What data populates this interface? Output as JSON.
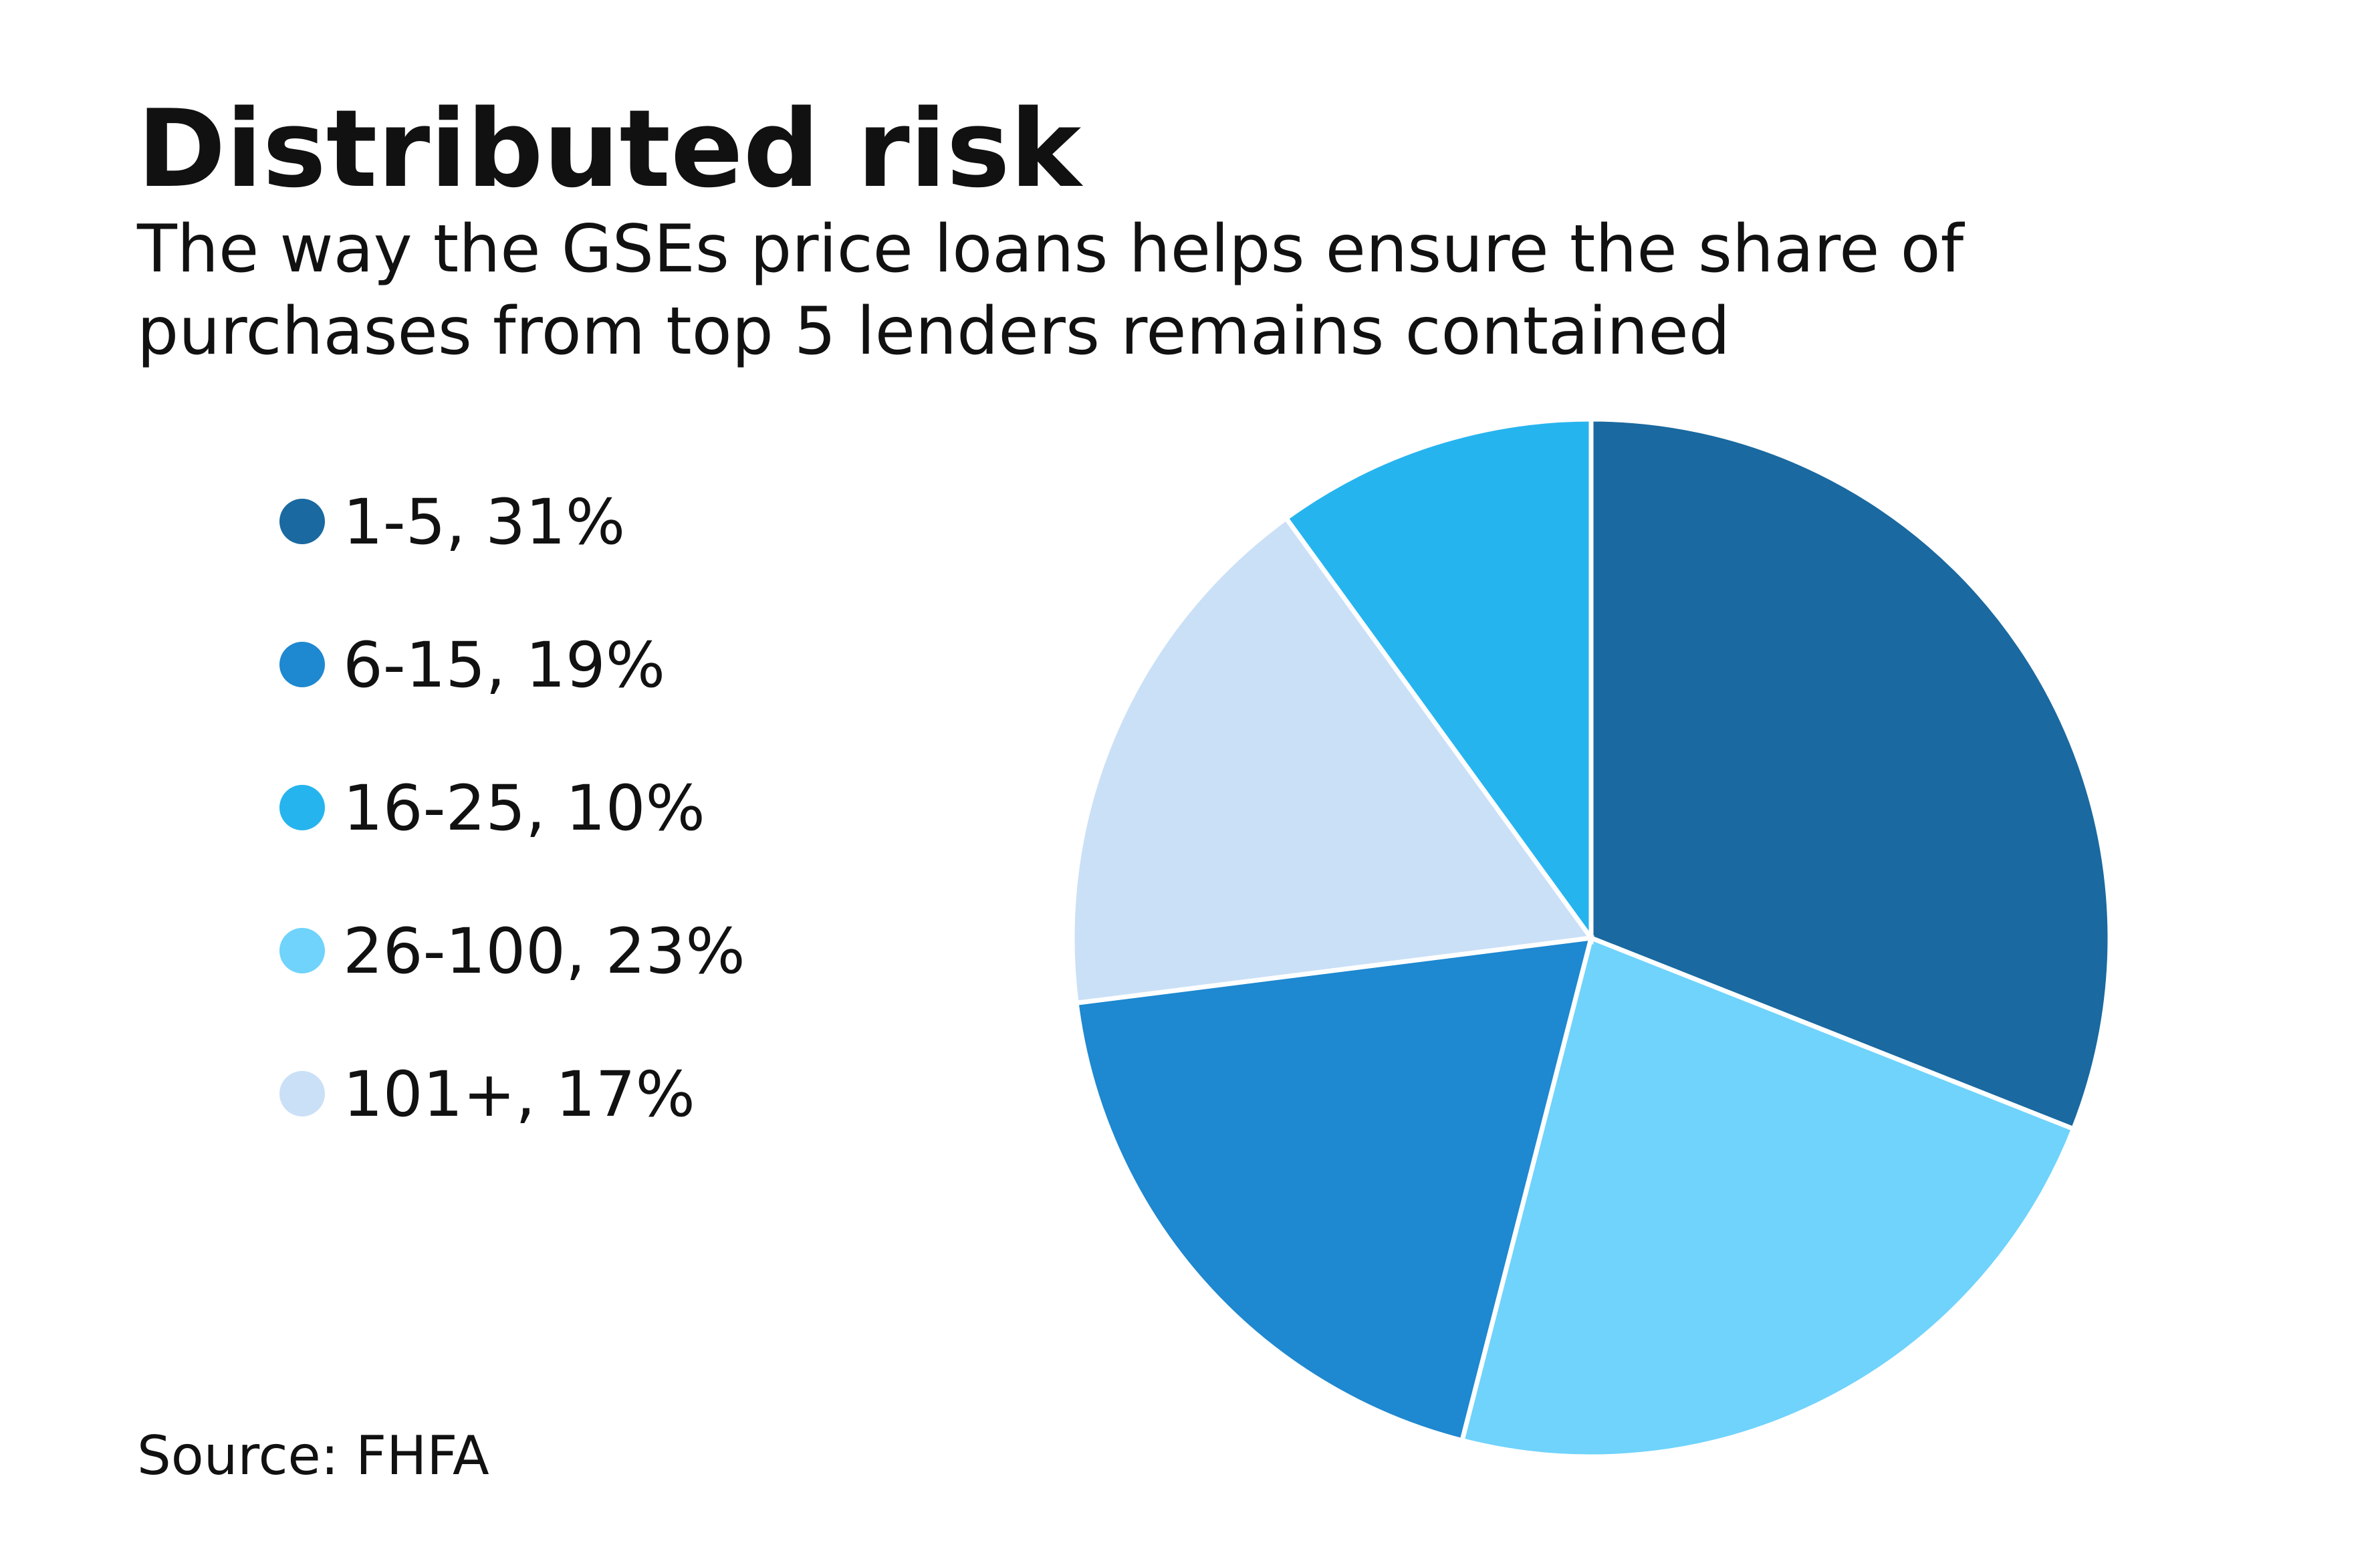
{
  "chart_data": {
    "type": "pie",
    "title": "Distributed risk",
    "subtitle": [
      "The way the GSEs price loans helps ensure the share of",
      "purchases from top 5 lenders remains contained"
    ],
    "source": "Source: FHFA",
    "categories": [
      "1-5, 31%",
      "6-15, 19%",
      "16-25, 10%",
      "26-100, 23%",
      "101+, 17%"
    ],
    "values": [
      31,
      19,
      10,
      23,
      17
    ],
    "colors": [
      "#1a69a0",
      "#1e88d0",
      "#26b4ef",
      "#6fd3fc",
      "#cae0f7"
    ],
    "legend": "left"
  }
}
